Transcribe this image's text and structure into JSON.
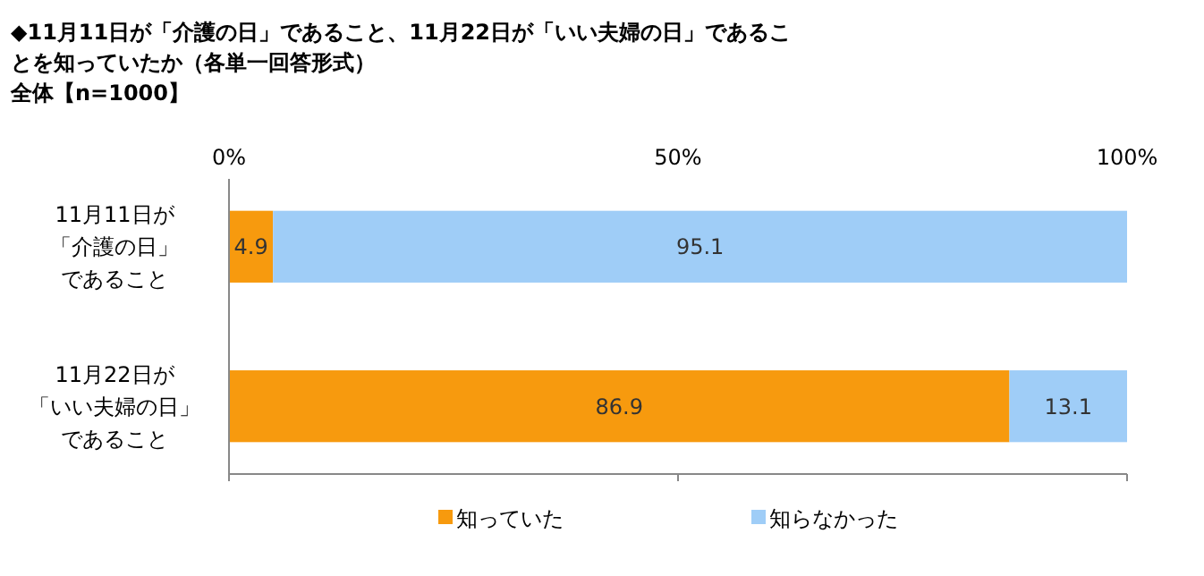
{
  "chart_data": {
    "type": "bar",
    "orientation": "horizontal",
    "stacked": true,
    "title": "◆11月11日が「介護の日」であること、11月22日が「いい夫婦の日」であることを知っていたか（各単一回答形式）",
    "subtitle": "全体【n=1000】",
    "categories": [
      "11月11日が「介護の日」であること",
      "11月22日が「いい夫婦の日」であること"
    ],
    "series": [
      {
        "name": "知っていた",
        "color": "#f79a0e",
        "values": [
          4.9,
          86.9
        ]
      },
      {
        "name": "知らなかった",
        "color": "#9fcdf7",
        "values": [
          95.1,
          13.1
        ]
      }
    ],
    "xlim": [
      0,
      100
    ],
    "xticks": [
      {
        "value": 0,
        "label": "0%"
      },
      {
        "value": 50,
        "label": "50%"
      },
      {
        "value": 100,
        "label": "100%"
      }
    ],
    "data_labels": true,
    "legend": "bottom"
  }
}
